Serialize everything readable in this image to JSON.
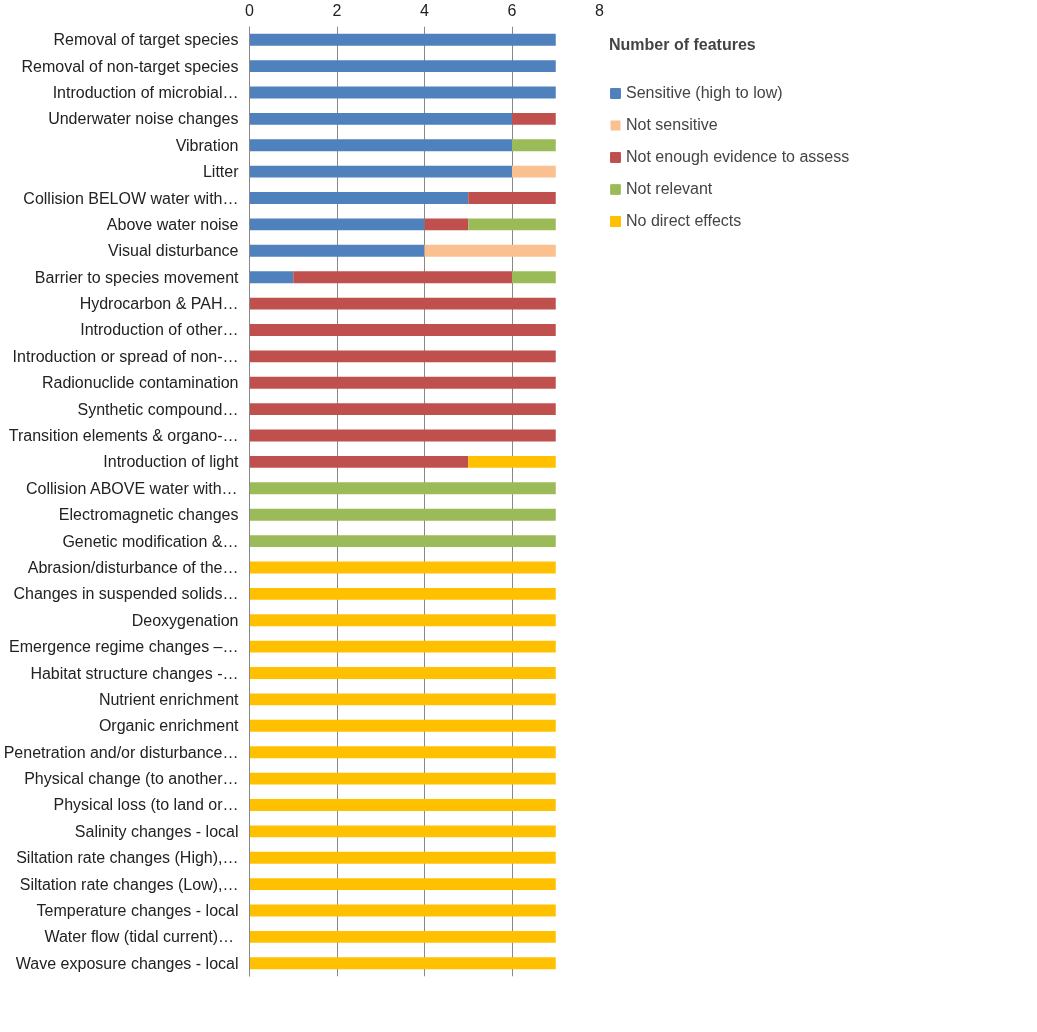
{
  "chart_data": {
    "type": "bar",
    "orientation": "horizontal",
    "stacked": true,
    "categories": [
      "Removal of target species",
      "Removal of non-target species",
      "Introduction of microbial…",
      "Underwater noise changes",
      "Vibration",
      "Litter",
      "Collision BELOW water with…",
      "Above water noise",
      "Visual disturbance",
      "Barrier to species movement",
      "Hydrocarbon & PAH…",
      "Introduction of other…",
      "Introduction or spread of non-…",
      "Radionuclide contamination",
      "Synthetic compound…",
      "Transition elements & organo-…",
      "Introduction of light",
      "Collision ABOVE water with…",
      "Electromagnetic changes",
      "Genetic modification &…",
      "Abrasion/disturbance of the…",
      "Changes in suspended solids…",
      "Deoxygenation",
      "Emergence regime changes –…",
      "Habitat structure changes -…",
      "Nutrient enrichment",
      "Organic enrichment",
      "Penetration and/or disturbance…",
      "Physical change (to another…",
      "Physical loss (to land or…",
      "Salinity changes - local",
      "Siltation rate changes (High),…",
      "Siltation rate changes (Low),…",
      "Temperature changes - local",
      "Water flow  (tidal current)…",
      "Wave exposure changes - local"
    ],
    "series": [
      {
        "name": "Sensitive (high to low)",
        "color": "#4f81bd",
        "values": [
          7,
          7,
          7,
          6,
          6,
          6,
          5,
          4,
          4,
          1,
          null,
          null,
          null,
          null,
          null,
          null,
          null,
          null,
          null,
          null,
          null,
          null,
          null,
          null,
          null,
          null,
          null,
          null,
          null,
          null,
          null,
          null,
          null,
          null,
          null,
          null
        ]
      },
      {
        "name": "Not sensitive",
        "color": "#fac090",
        "values": [
          null,
          null,
          null,
          null,
          null,
          1,
          null,
          null,
          3,
          null,
          null,
          null,
          null,
          null,
          null,
          null,
          null,
          null,
          null,
          null,
          null,
          null,
          null,
          null,
          null,
          null,
          null,
          null,
          null,
          null,
          null,
          null,
          null,
          null,
          null,
          null
        ]
      },
      {
        "name": "Not enough evidence to assess",
        "color": "#c0504d",
        "values": [
          null,
          null,
          null,
          1,
          null,
          null,
          2,
          1,
          null,
          5,
          7,
          7,
          7,
          7,
          7,
          7,
          5,
          null,
          null,
          null,
          null,
          null,
          null,
          null,
          null,
          null,
          null,
          null,
          null,
          null,
          null,
          null,
          null,
          null,
          null,
          null
        ]
      },
      {
        "name": "Not relevant",
        "color": "#9bbb59",
        "values": [
          null,
          null,
          null,
          null,
          1,
          null,
          null,
          2,
          null,
          1,
          null,
          null,
          null,
          null,
          null,
          null,
          null,
          7,
          7,
          7,
          null,
          null,
          null,
          null,
          null,
          null,
          null,
          null,
          null,
          null,
          null,
          null,
          null,
          null,
          null,
          null
        ]
      },
      {
        "name": "No direct effects",
        "color": "#ffc000",
        "values": [
          null,
          null,
          null,
          null,
          null,
          null,
          null,
          null,
          null,
          null,
          null,
          null,
          null,
          null,
          null,
          null,
          2,
          null,
          null,
          null,
          7,
          7,
          7,
          7,
          7,
          7,
          7,
          7,
          7,
          7,
          7,
          7,
          7,
          7,
          7,
          7
        ]
      }
    ],
    "xlim": [
      0,
      8
    ],
    "xticks": [
      0,
      2,
      4,
      6,
      8
    ],
    "grid": "x",
    "legend": "right",
    "legend_title": "Number of features"
  }
}
